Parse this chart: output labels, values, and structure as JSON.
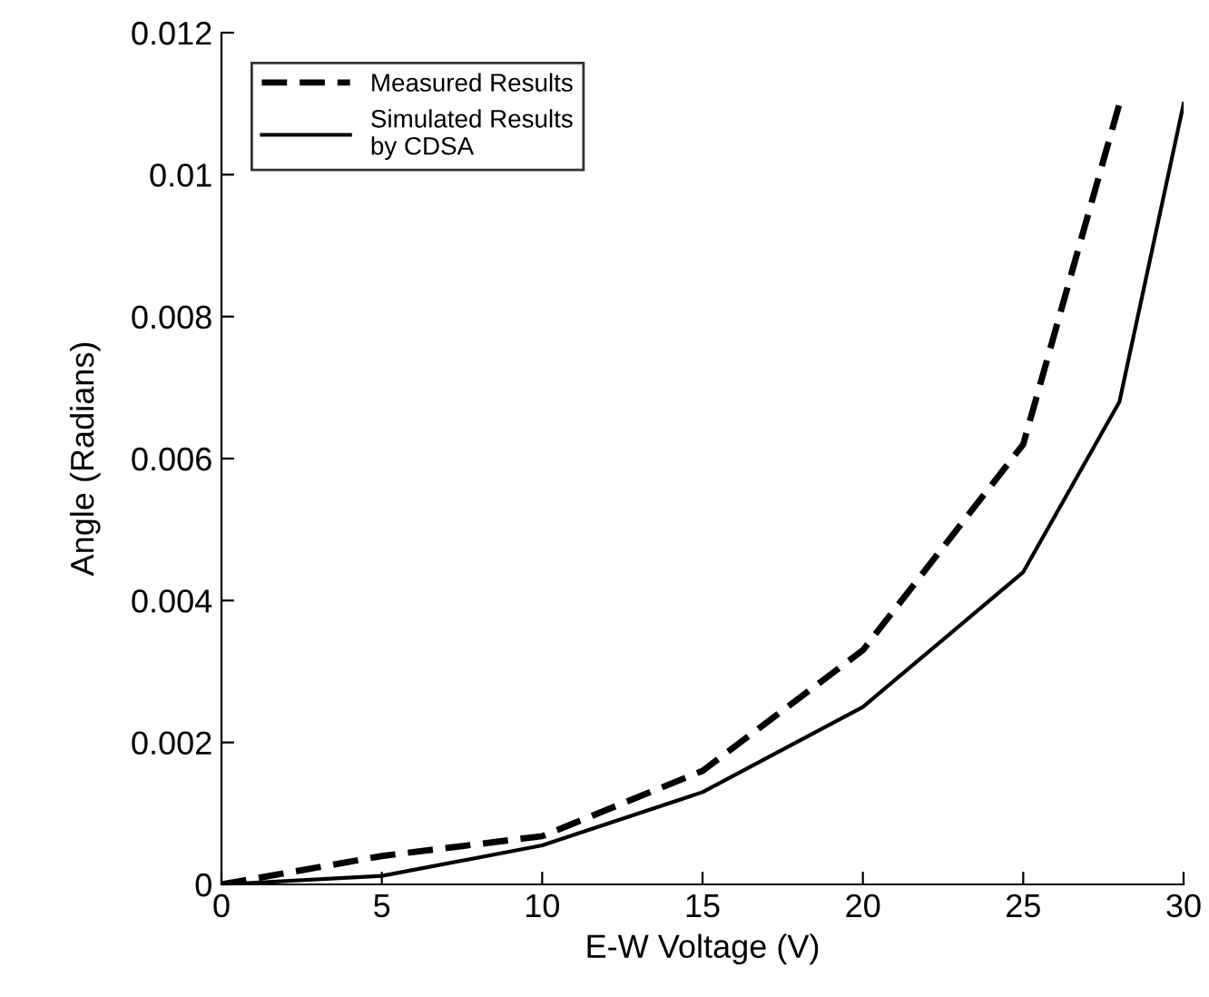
{
  "chart_data": {
    "type": "line",
    "xlabel": "E-W Voltage (V)",
    "ylabel": "Angle (Radians)",
    "xlim": [
      0,
      30
    ],
    "xticks": [
      0,
      5,
      10,
      15,
      20,
      25,
      30
    ],
    "ylim": [
      0,
      0.012
    ],
    "yticks": [
      0,
      0.002,
      0.004,
      0.006,
      0.008,
      0.01,
      0.012
    ],
    "grid": false,
    "legend": "top left",
    "marker": "none",
    "series": [
      {
        "name": "Measured Results",
        "color": "#000000",
        "line_style": "dashed",
        "x": [
          0,
          5,
          10,
          15,
          20,
          25,
          28
        ],
        "values": [
          0,
          0.0004,
          0.00068,
          0.0016,
          0.0033,
          0.0062,
          0.011
        ]
      },
      {
        "name": "Simulated Results\nby CDSA",
        "color": "#000000",
        "line_style": "solid",
        "x": [
          0,
          5,
          10,
          15,
          20,
          25,
          28,
          30
        ],
        "values": [
          0,
          0.00012,
          0.00055,
          0.0013,
          0.0025,
          0.0044,
          0.0068,
          0.011
        ]
      }
    ]
  }
}
